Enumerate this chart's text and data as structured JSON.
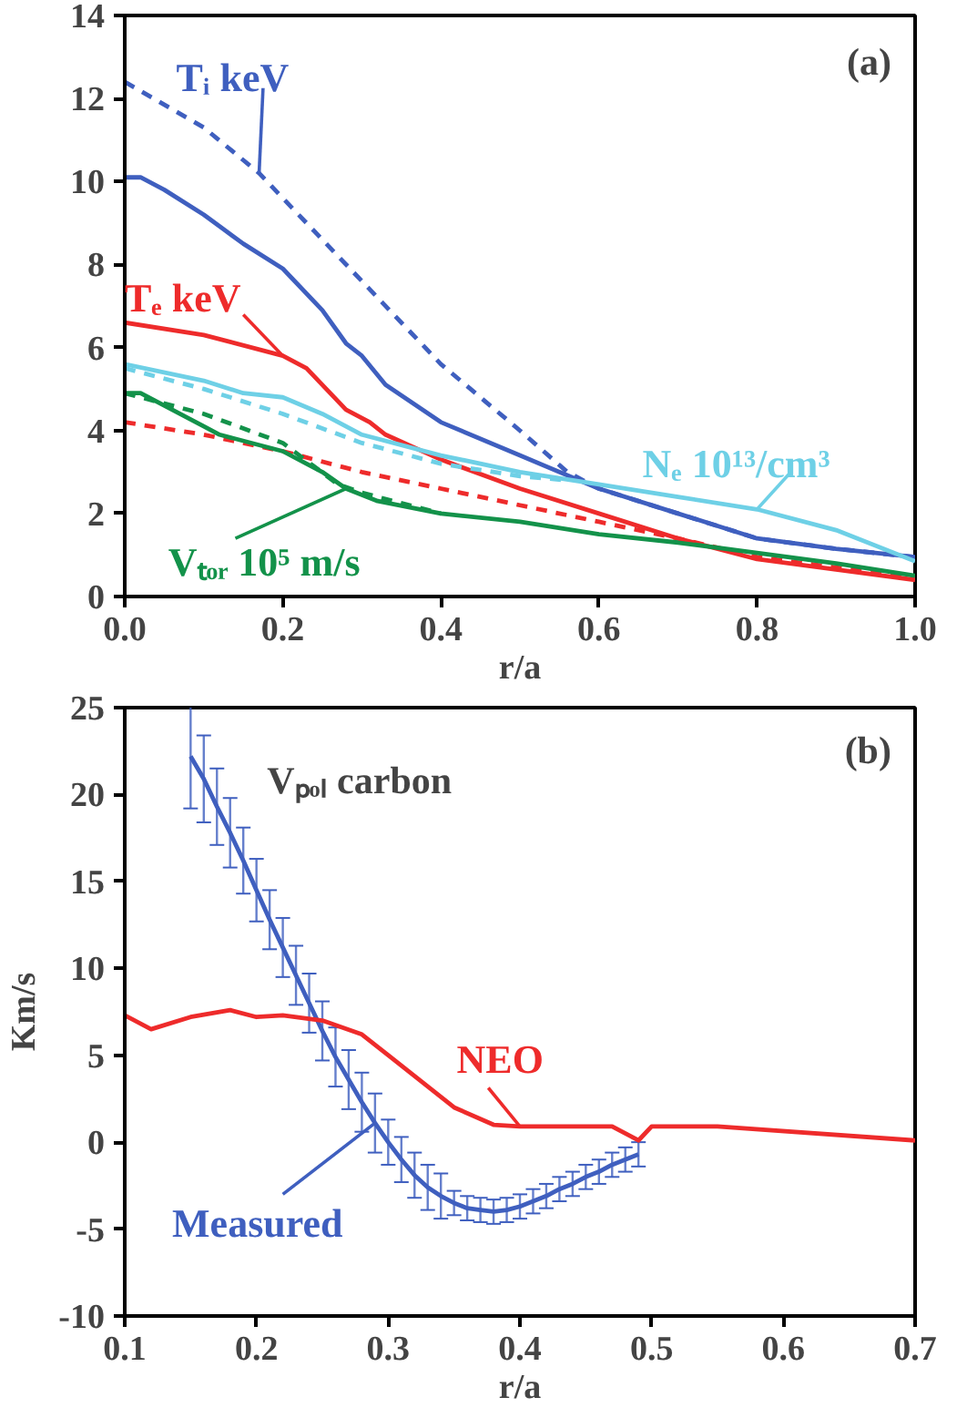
{
  "chart_data": [
    {
      "type": "line",
      "xlabel": "r/a",
      "xlim": [
        0,
        1
      ],
      "ylim": [
        0,
        14
      ],
      "xticks": [
        {
          "value": 0,
          "label": "0.0"
        },
        0.2,
        0.4,
        0.6,
        0.8,
        {
          "value": 1,
          "label": "1.0"
        }
      ],
      "yticks": [
        0,
        2,
        4,
        6,
        8,
        10,
        12,
        14
      ],
      "grid": false,
      "annotations": [
        "(a)"
      ],
      "series": [
        {
          "name": "Tᵢ keV",
          "color": "#3f5fbf",
          "line_style": "solid",
          "x": [
            0,
            0.02,
            0.05,
            0.1,
            0.15,
            0.2,
            0.25,
            0.28,
            0.3,
            0.33,
            0.4,
            0.5,
            0.6,
            0.7,
            0.8,
            0.9,
            1.0
          ],
          "values": [
            10.1,
            10.1,
            9.8,
            9.2,
            8.5,
            7.9,
            6.9,
            6.1,
            5.8,
            5.1,
            4.2,
            3.4,
            2.6,
            2.0,
            1.4,
            1.15,
            0.95
          ]
        },
        {
          "color": "#3f5fbf",
          "line_style": "dashed",
          "x": [
            0,
            0.1,
            0.17,
            0.2,
            0.3,
            0.4,
            0.5,
            0.56,
            0.6,
            0.7,
            0.8,
            0.9,
            1.0
          ],
          "values": [
            12.4,
            11.3,
            10.2,
            9.6,
            7.6,
            5.6,
            4.0,
            3.0,
            2.6,
            2.0,
            1.4,
            1.15,
            0.95
          ]
        },
        {
          "name": "Tₑ keV",
          "color": "#ee2b2b",
          "line_style": "solid",
          "x": [
            0,
            0.1,
            0.2,
            0.23,
            0.28,
            0.31,
            0.33,
            0.4,
            0.5,
            0.6,
            0.7,
            0.8,
            0.9,
            1.0
          ],
          "values": [
            6.6,
            6.3,
            5.8,
            5.5,
            4.5,
            4.2,
            3.9,
            3.3,
            2.6,
            2.0,
            1.4,
            0.9,
            0.65,
            0.4
          ]
        },
        {
          "color": "#ee2b2b",
          "line_style": "dashed",
          "x": [
            0,
            0.1,
            0.2,
            0.3,
            0.4,
            0.5,
            0.6,
            0.7,
            0.8,
            0.9,
            1.0
          ],
          "values": [
            4.2,
            3.9,
            3.5,
            3.0,
            2.6,
            2.2,
            1.8,
            1.4,
            0.95,
            0.7,
            0.45
          ]
        },
        {
          "name": "Nₑ 10¹³/cm³",
          "color": "#6ed0e6",
          "line_style": "solid",
          "x": [
            0,
            0.1,
            0.15,
            0.2,
            0.25,
            0.3,
            0.4,
            0.5,
            0.6,
            0.7,
            0.8,
            0.9,
            1.0
          ],
          "values": [
            5.6,
            5.2,
            4.9,
            4.8,
            4.4,
            3.9,
            3.4,
            3.0,
            2.7,
            2.4,
            2.1,
            1.6,
            0.85
          ]
        },
        {
          "color": "#6ed0e6",
          "line_style": "dashed",
          "x": [
            0,
            0.1,
            0.2,
            0.3,
            0.4,
            0.5,
            0.56
          ],
          "values": [
            5.5,
            5.0,
            4.4,
            3.7,
            3.2,
            2.9,
            2.8
          ]
        },
        {
          "name": "Vₜₒᵣ 10⁵ m/s",
          "color": "#13924a",
          "line_style": "solid",
          "x": [
            0,
            0.02,
            0.1,
            0.12,
            0.2,
            0.25,
            0.28,
            0.32,
            0.4,
            0.5,
            0.6,
            0.7,
            0.8,
            0.9,
            1.0
          ],
          "values": [
            4.9,
            4.9,
            4.1,
            3.9,
            3.5,
            3.0,
            2.6,
            2.3,
            2.0,
            1.8,
            1.5,
            1.3,
            1.05,
            0.8,
            0.5
          ]
        },
        {
          "color": "#13924a",
          "line_style": "dashed",
          "x": [
            0,
            0.1,
            0.2,
            0.27,
            0.3,
            0.4
          ],
          "values": [
            4.9,
            4.4,
            3.7,
            2.7,
            2.5,
            2.0
          ]
        }
      ]
    },
    {
      "type": "line",
      "xlabel": "r/a",
      "ylabel": "Km/s",
      "xlim": [
        0.1,
        0.7
      ],
      "ylim": [
        -10,
        25
      ],
      "xticks": [
        0.1,
        0.2,
        0.3,
        0.4,
        0.5,
        0.6,
        0.7
      ],
      "yticks": [
        -10,
        -5,
        0,
        5,
        10,
        15,
        20,
        25
      ],
      "grid": false,
      "annotations": [
        "(b)",
        "Vₚₒₗ carbon"
      ],
      "series": [
        {
          "name": "Measured",
          "color": "#3f5fbf",
          "line_style": "solid",
          "x": [
            0.15,
            0.16,
            0.17,
            0.18,
            0.19,
            0.2,
            0.21,
            0.22,
            0.23,
            0.24,
            0.25,
            0.26,
            0.27,
            0.28,
            0.29,
            0.3,
            0.31,
            0.32,
            0.33,
            0.34,
            0.35,
            0.36,
            0.37,
            0.38,
            0.39,
            0.4,
            0.41,
            0.42,
            0.43,
            0.44,
            0.45,
            0.46,
            0.47,
            0.48,
            0.49
          ],
          "values": [
            22.2,
            20.9,
            19.3,
            17.8,
            16.2,
            14.5,
            12.8,
            11.2,
            9.6,
            8.0,
            6.4,
            4.9,
            3.6,
            2.3,
            1.1,
            0.0,
            -1.0,
            -1.9,
            -2.6,
            -3.1,
            -3.5,
            -3.8,
            -3.9,
            -4.0,
            -3.9,
            -3.7,
            -3.4,
            -3.1,
            -2.7,
            -2.4,
            -2.0,
            -1.7,
            -1.3,
            -1.0,
            -0.7
          ],
          "errors": [
            3,
            2.5,
            2.2,
            2,
            1.9,
            1.8,
            1.7,
            1.7,
            1.7,
            1.7,
            1.7,
            1.7,
            1.7,
            1.7,
            1.7,
            1.3,
            1.3,
            1.3,
            1.3,
            1.3,
            0.7,
            0.7,
            0.7,
            0.7,
            0.7,
            0.7,
            0.7,
            0.7,
            0.7,
            0.7,
            0.7,
            0.7,
            0.7,
            0.7,
            0.7
          ]
        },
        {
          "name": "NEO",
          "color": "#ee2b2b",
          "line_style": "solid",
          "x": [
            0.1,
            0.12,
            0.15,
            0.18,
            0.2,
            0.22,
            0.25,
            0.28,
            0.3,
            0.35,
            0.38,
            0.4,
            0.47,
            0.49,
            0.5,
            0.55,
            0.7
          ],
          "values": [
            7.3,
            6.5,
            7.2,
            7.6,
            7.2,
            7.3,
            7.0,
            6.2,
            5.0,
            2.0,
            1.0,
            0.9,
            0.9,
            0.1,
            0.9,
            0.9,
            0.1
          ]
        }
      ]
    }
  ]
}
